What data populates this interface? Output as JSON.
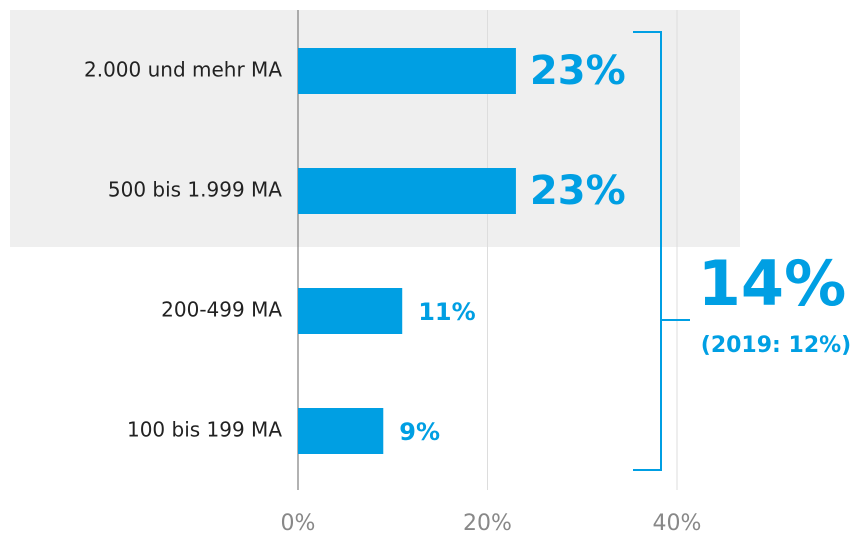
{
  "chart_data": {
    "type": "hbar",
    "categories": [
      "2.000 und mehr MA",
      "500 bis 1.999 MA",
      "200-499 MA",
      "100 bis 199 MA"
    ],
    "values": [
      23,
      23,
      11,
      9
    ],
    "value_labels": [
      "23%",
      "23%",
      "11%",
      "9%"
    ],
    "color": "#009fe3",
    "xlim": [
      0,
      40
    ],
    "xticks": [
      {
        "value": 0,
        "label": "0%"
      },
      {
        "value": 20,
        "label": "20%"
      },
      {
        "value": 40,
        "label": "40%"
      }
    ],
    "grid": true,
    "annotations": [
      "14%",
      "(2019: 12%)"
    ]
  }
}
